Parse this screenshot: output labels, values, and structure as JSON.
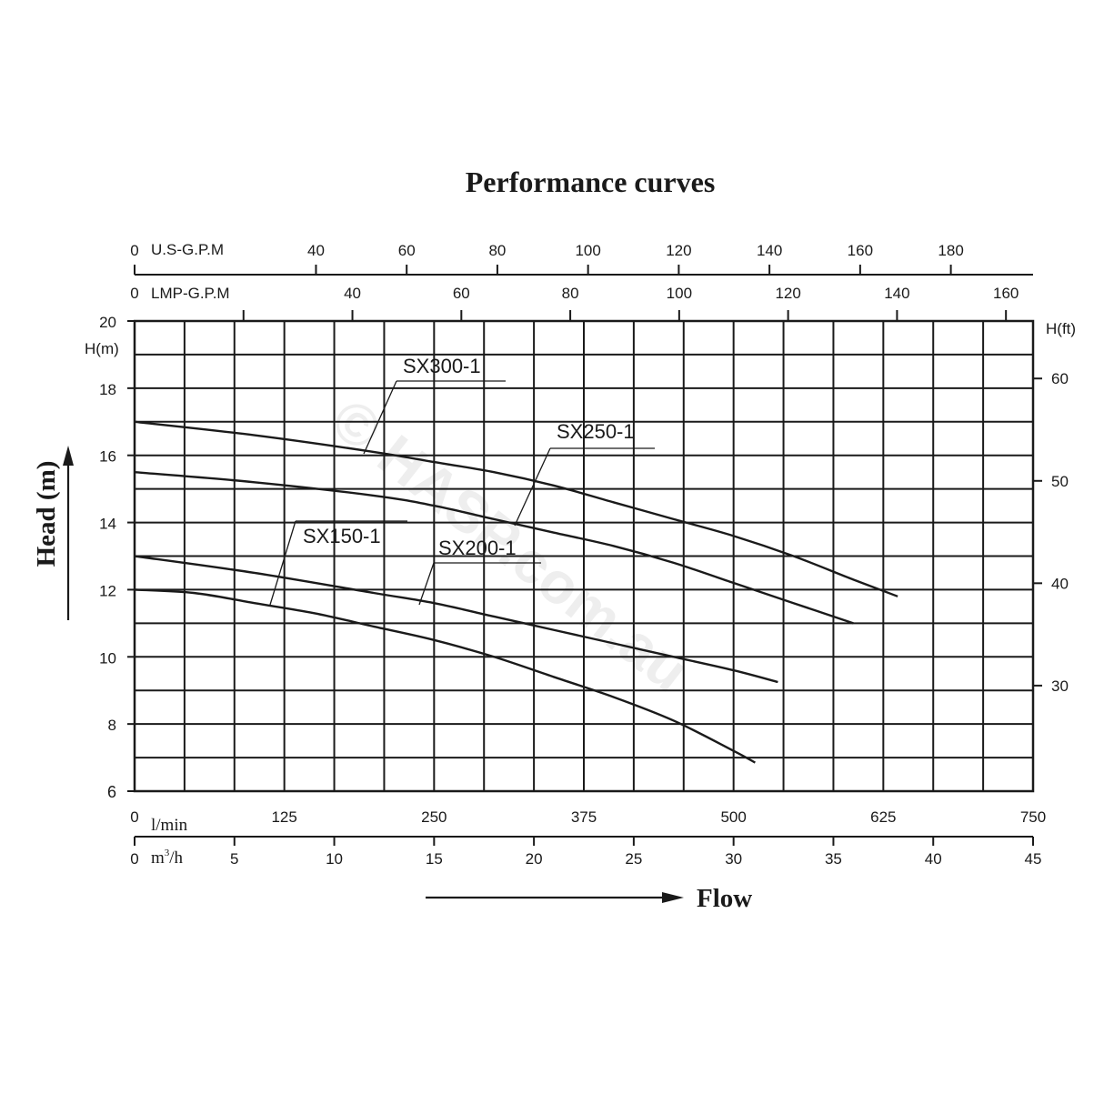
{
  "chart_data": {
    "type": "line",
    "title": "Performance curves",
    "ylabel": "Head (m)",
    "xlabel": "Flow",
    "left_axis": {
      "unit": "H(m)",
      "ylim": [
        6,
        20
      ],
      "ticks": [
        "6",
        "8",
        "10",
        "12",
        "14",
        "16",
        "18",
        "20"
      ]
    },
    "right_axis": {
      "unit": "H(ft)",
      "ticks": [
        "30",
        "40",
        "50",
        "60"
      ]
    },
    "bottom_axis_lmin": {
      "unit": "l/min",
      "xlim": [
        0,
        750
      ],
      "ticks": [
        "0",
        "125",
        "250",
        "375",
        "500",
        "625",
        "750"
      ]
    },
    "bottom_axis_m3h": {
      "unit_main": "m",
      "unit_sup": "3",
      "unit_tail": "/h",
      "ticks": [
        "0",
        "5",
        "10",
        "15",
        "20",
        "25",
        "30",
        "35",
        "40",
        "45"
      ]
    },
    "top_axis_usgpm": {
      "unit": "U.S-G.P.M",
      "ticks": [
        "0",
        "40",
        "60",
        "80",
        "100",
        "120",
        "140",
        "160",
        "180"
      ]
    },
    "top_axis_lmpgpm": {
      "unit": "LMP-G.P.M",
      "ticks": [
        "0",
        "40",
        "60",
        "80",
        "100",
        "120",
        "140",
        "160"
      ]
    },
    "grid": true,
    "series": [
      {
        "name": "SX300-1",
        "x": [
          0,
          100,
          200,
          250,
          300,
          350,
          400,
          450,
          500,
          550,
          600,
          637
        ],
        "y": [
          17.0,
          16.6,
          16.1,
          15.8,
          15.5,
          15.1,
          14.6,
          14.1,
          13.6,
          13.0,
          12.3,
          11.8
        ]
      },
      {
        "name": "SX250-1",
        "x": [
          0,
          100,
          200,
          250,
          300,
          350,
          400,
          450,
          500,
          550,
          600
        ],
        "y": [
          15.5,
          15.2,
          14.8,
          14.5,
          14.1,
          13.7,
          13.3,
          12.8,
          12.2,
          11.6,
          11.0
        ]
      },
      {
        "name": "SX200-1",
        "x": [
          0,
          100,
          200,
          250,
          300,
          350,
          400,
          450,
          500,
          537
        ],
        "y": [
          13.0,
          12.5,
          11.9,
          11.6,
          11.2,
          10.8,
          10.4,
          10.0,
          9.6,
          9.25
        ]
      },
      {
        "name": "SX150-1",
        "x": [
          0,
          50,
          100,
          150,
          200,
          250,
          300,
          350,
          400,
          450,
          500,
          518
        ],
        "y": [
          12.0,
          11.9,
          11.6,
          11.3,
          10.9,
          10.5,
          10.0,
          9.4,
          8.8,
          8.1,
          7.2,
          6.85
        ]
      }
    ]
  },
  "watermark": "© HASP.com.au"
}
